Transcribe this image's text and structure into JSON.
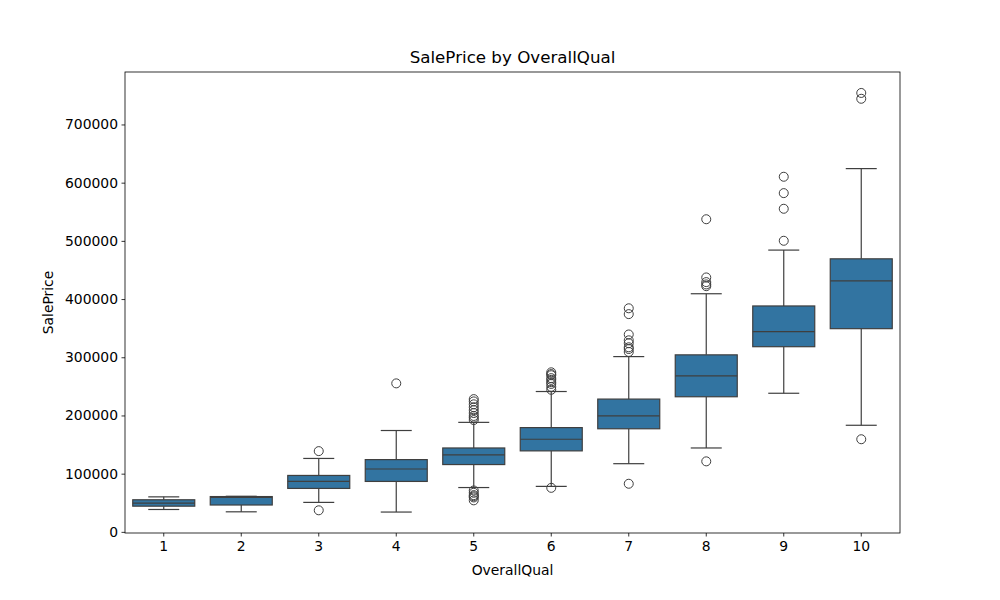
{
  "chart_data": {
    "type": "box",
    "title": "SalePrice by OverallQual",
    "x_label": "OverallQual",
    "y_label": "SalePrice",
    "categories": [
      "1",
      "2",
      "3",
      "4",
      "5",
      "6",
      "7",
      "8",
      "9",
      "10"
    ],
    "color": "#3274a1",
    "stats": [
      {
        "min": 39300,
        "q1": 45000,
        "median": 50150,
        "q3": 56000,
        "max": 61000,
        "outliers": []
      },
      {
        "min": 35311,
        "q1": 47000,
        "median": 60000,
        "q3": 61500,
        "max": 62000,
        "outliers": []
      },
      {
        "min": 51500,
        "q1": 75500,
        "median": 87500,
        "q3": 97800,
        "max": 127000,
        "outliers": [
          139600,
          37900
        ]
      },
      {
        "min": 34900,
        "q1": 87500,
        "median": 108900,
        "q3": 125000,
        "max": 175000,
        "outliers": [
          256000
        ]
      },
      {
        "min": 77000,
        "q1": 116500,
        "median": 133000,
        "q3": 145000,
        "max": 189000,
        "outliers": [
          193000,
          197000,
          200000,
          205000,
          210000,
          215000,
          220000,
          225000,
          228950,
          55000,
          60000,
          62000,
          64000,
          68000,
          72000
        ]
      },
      {
        "min": 79000,
        "q1": 140000,
        "median": 160000,
        "q3": 180000,
        "max": 242000,
        "outliers": [
          76500,
          245000,
          250000,
          255000,
          258000,
          262000,
          265000,
          270000,
          272000,
          275000
        ]
      },
      {
        "min": 118000,
        "q1": 178000,
        "median": 200000,
        "q3": 229000,
        "max": 302000,
        "outliers": [
          83500,
          310000,
          315000,
          318000,
          325000,
          330000,
          340000,
          375000,
          385000
        ]
      },
      {
        "min": 145000,
        "q1": 233000,
        "median": 269000,
        "q3": 305000,
        "max": 410000,
        "outliers": [
          122000,
          423000,
          426000,
          430000,
          438000,
          538000
        ]
      },
      {
        "min": 239000,
        "q1": 319000,
        "median": 345000,
        "q3": 389000,
        "max": 485000,
        "outliers": [
          501000,
          556000,
          582900,
          611000
        ]
      },
      {
        "min": 184000,
        "q1": 350000,
        "median": 432000,
        "q3": 470000,
        "max": 625000,
        "outliers": [
          160000,
          745000,
          755000
        ]
      }
    ],
    "ylim": [
      -1100,
      791000
    ],
    "yticks": [
      0,
      100000,
      200000,
      300000,
      400000,
      500000,
      600000,
      700000
    ]
  }
}
